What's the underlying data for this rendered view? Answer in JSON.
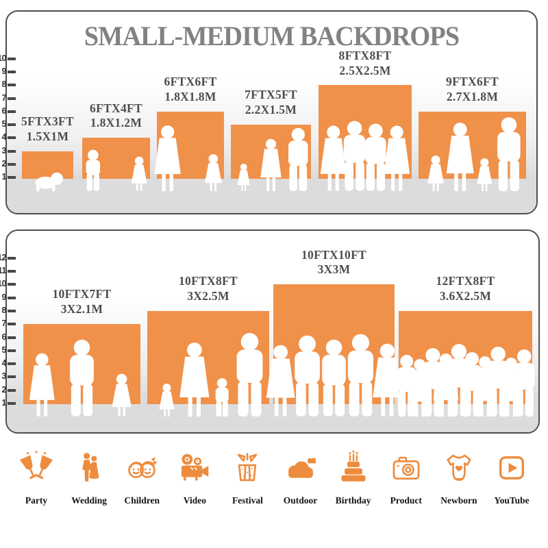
{
  "title": "SMALL-MEDIUM BACKDROPS",
  "colors": {
    "bar_orange": "#F0914A",
    "icon_orange": "#ED8C3E",
    "title_gray": "#828282",
    "label_gray": "#4D4D4D",
    "floor_gray": "#DCDCDC",
    "border_gray": "#4E4E4E"
  },
  "chart_data": [
    {
      "type": "bar",
      "title": "SMALL-MEDIUM BACKDROPS",
      "ylabel": "",
      "xlabel": "",
      "ylim": [
        0,
        10
      ],
      "yticks": [
        1,
        2,
        3,
        4,
        5,
        6,
        7,
        8,
        9,
        10
      ],
      "grid": false,
      "legend": "none",
      "bar_color": "#F0914A",
      "categories": [
        "5FTX3FT",
        "6FTX4FT",
        "6FTX6FT",
        "7FTX5FT",
        "8FTX8FT",
        "9FTX6FT"
      ],
      "values": [
        3,
        4,
        6,
        5,
        8,
        6
      ],
      "bar_widths_ft": [
        5,
        6,
        6,
        7,
        8,
        9
      ],
      "labels_ft": [
        "5FTX3FT",
        "6FTX4FT",
        "6FTX6FT",
        "7FTX5FT",
        "8FTX8FT",
        "9FTX6FT"
      ],
      "labels_m": [
        "1.5X1M",
        "1.8X1.2M",
        "1.8X1.8M",
        "2.2X1.5M",
        "2.5X2.5M",
        "2.7X1.8M"
      ],
      "figures": [
        [
          [
            "baby",
            30
          ]
        ],
        [
          [
            "boy",
            60
          ],
          [
            "girl",
            50
          ]
        ],
        [
          [
            "woman",
            96
          ],
          [
            "girl",
            54
          ]
        ],
        [
          [
            "girl",
            40
          ],
          [
            "woman",
            76
          ],
          [
            "man",
            92
          ]
        ],
        [
          [
            "woman",
            95
          ],
          [
            "man",
            102
          ],
          [
            "man",
            98
          ],
          [
            "woman",
            95
          ]
        ],
        [
          [
            "girl",
            52
          ],
          [
            "woman",
            100
          ],
          [
            "girl",
            48
          ],
          [
            "man",
            108
          ]
        ]
      ]
    },
    {
      "type": "bar",
      "title": "",
      "ylabel": "",
      "xlabel": "",
      "ylim": [
        0,
        12
      ],
      "yticks": [
        1,
        2,
        3,
        4,
        5,
        6,
        7,
        8,
        9,
        10,
        11,
        12
      ],
      "grid": false,
      "legend": "none",
      "bar_color": "#F0914A",
      "categories": [
        "10FTX7FT",
        "10FTX8FT",
        "10FTX10FT",
        "12FTX8FT"
      ],
      "values": [
        7,
        8,
        10,
        8
      ],
      "bar_widths_ft": [
        10,
        10,
        10,
        12
      ],
      "labels_ft": [
        "10FTX7FT",
        "10FTX8FT",
        "10FTX10FT",
        "12FTX8FT"
      ],
      "labels_m": [
        "3X2.1M",
        "3X2.5M",
        "3X3M",
        "3.6X2.5M"
      ],
      "figures": [
        [
          [
            "woman",
            92
          ],
          [
            "man",
            112
          ],
          [
            "girl",
            62
          ]
        ],
        [
          [
            "girl",
            48
          ],
          [
            "woman",
            108
          ],
          [
            "boy",
            56
          ],
          [
            "man",
            122
          ]
        ],
        [
          [
            "woman",
            104
          ],
          [
            "man",
            118
          ],
          [
            "man",
            112
          ],
          [
            "man",
            120
          ],
          [
            "woman",
            106
          ]
        ],
        [
          [
            "man",
            90
          ],
          [
            "woman",
            84
          ],
          [
            "man",
            100
          ],
          [
            "woman",
            92
          ],
          [
            "man",
            106
          ],
          [
            "man",
            94
          ],
          [
            "woman",
            88
          ],
          [
            "man",
            102
          ],
          [
            "woman",
            86
          ],
          [
            "man",
            98
          ]
        ]
      ]
    }
  ],
  "categories_row": [
    {
      "label": "Party",
      "icon": "party-icon"
    },
    {
      "label": "Wedding",
      "icon": "wedding-icon"
    },
    {
      "label": "Children",
      "icon": "children-icon"
    },
    {
      "label": "Video",
      "icon": "video-icon"
    },
    {
      "label": "Festival",
      "icon": "festival-icon"
    },
    {
      "label": "Outdoor",
      "icon": "outdoor-icon"
    },
    {
      "label": "Birthday",
      "icon": "birthday-icon"
    },
    {
      "label": "Product",
      "icon": "product-icon"
    },
    {
      "label": "Newborn",
      "icon": "newborn-icon"
    },
    {
      "label": "YouTube",
      "icon": "youtube-icon"
    }
  ]
}
